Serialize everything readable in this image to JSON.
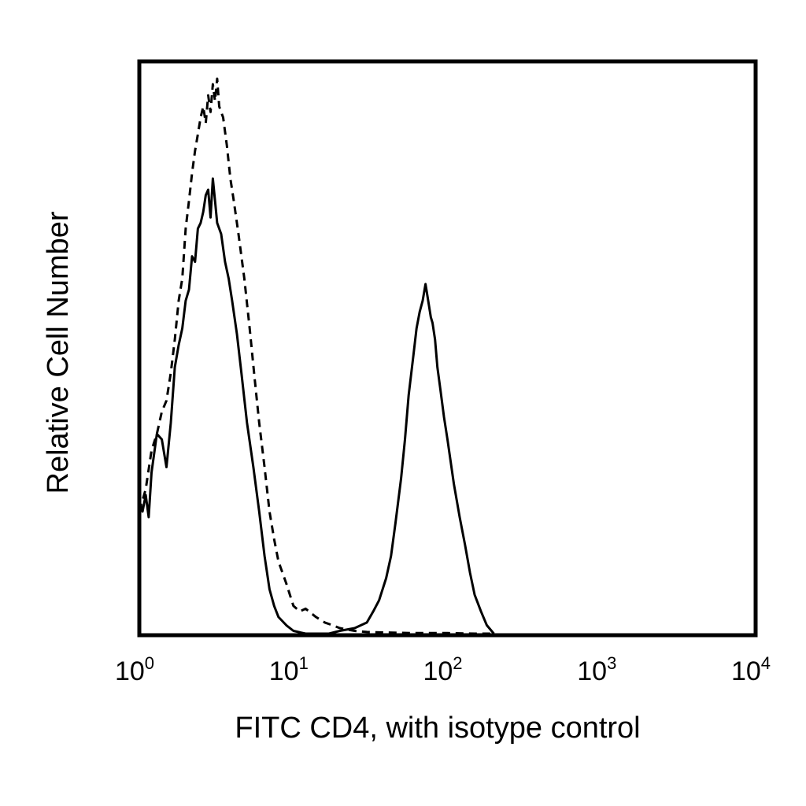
{
  "chart_data": {
    "type": "line",
    "title": "",
    "xlabel": "FITC CD4, with isotype control",
    "ylabel": "Relative Cell Number",
    "x_scale": "log",
    "xlim": [
      1,
      10000
    ],
    "ylim": [
      0,
      1
    ],
    "grid": false,
    "x_ticks": [
      {
        "base": "10",
        "exp": "0",
        "value": 1
      },
      {
        "base": "10",
        "exp": "1",
        "value": 10
      },
      {
        "base": "10",
        "exp": "2",
        "value": 100
      },
      {
        "base": "10",
        "exp": "3",
        "value": 1000
      },
      {
        "base": "10",
        "exp": "4",
        "value": 10000
      }
    ],
    "colors": {
      "line": "#000000",
      "frame": "#000000",
      "background": "#ffffff"
    },
    "series": [
      {
        "style": "solid",
        "x": [
          1.0,
          1.05,
          1.1,
          1.15,
          1.2,
          1.3,
          1.4,
          1.5,
          1.6,
          1.7,
          1.8,
          1.9,
          2.0,
          2.1,
          2.2,
          2.3,
          2.4,
          2.5,
          2.6,
          2.7,
          2.8,
          2.9,
          3.0,
          3.1,
          3.2,
          3.4,
          3.6,
          3.8,
          4.0,
          4.3,
          4.6,
          5.0,
          5.5,
          6.0,
          6.5,
          7.0,
          7.5,
          8.0,
          9.0,
          10.0,
          12.0,
          14.0,
          17.0,
          20.0,
          25.0,
          30.0,
          33.0,
          36.0,
          40.0,
          43.0,
          46.0,
          50.0,
          53.0,
          56.0,
          60.0,
          63.0,
          66.0,
          69.0,
          72.0,
          75.0,
          78.0,
          80.0,
          83.0,
          86.0,
          90.0,
          95.0,
          100.0,
          110.0,
          120.0,
          130.0,
          140.0,
          150.0,
          165.0,
          180.0,
          200.0
        ],
        "y": [
          0.24,
          0.22,
          0.25,
          0.21,
          0.29,
          0.36,
          0.35,
          0.3,
          0.38,
          0.48,
          0.52,
          0.55,
          0.6,
          0.62,
          0.68,
          0.67,
          0.73,
          0.74,
          0.76,
          0.79,
          0.8,
          0.75,
          0.82,
          0.78,
          0.74,
          0.72,
          0.67,
          0.64,
          0.6,
          0.54,
          0.47,
          0.38,
          0.3,
          0.22,
          0.14,
          0.08,
          0.05,
          0.03,
          0.015,
          0.005,
          0.0,
          0.0,
          0.0,
          0.005,
          0.01,
          0.02,
          0.04,
          0.06,
          0.1,
          0.14,
          0.2,
          0.28,
          0.35,
          0.43,
          0.5,
          0.55,
          0.58,
          0.6,
          0.63,
          0.6,
          0.57,
          0.56,
          0.53,
          0.48,
          0.44,
          0.39,
          0.35,
          0.27,
          0.21,
          0.16,
          0.11,
          0.07,
          0.04,
          0.015,
          0.0
        ]
      },
      {
        "style": "dashed",
        "x": [
          1.0,
          1.1,
          1.2,
          1.3,
          1.4,
          1.5,
          1.6,
          1.7,
          1.8,
          1.9,
          2.0,
          2.1,
          2.2,
          2.3,
          2.4,
          2.5,
          2.6,
          2.7,
          2.8,
          2.9,
          3.0,
          3.1,
          3.2,
          3.3,
          3.5,
          3.7,
          3.9,
          4.1,
          4.4,
          4.8,
          5.2,
          5.6,
          6.0,
          6.5,
          7.0,
          7.5,
          8.0,
          9.0,
          10.0,
          11.0,
          12.0,
          14.0,
          16.0,
          18.0,
          20.0,
          25.0,
          30.0,
          40.0,
          60.0,
          100.0,
          150.0,
          200.0
        ],
        "y": [
          0.22,
          0.26,
          0.33,
          0.36,
          0.4,
          0.42,
          0.47,
          0.53,
          0.6,
          0.64,
          0.73,
          0.78,
          0.83,
          0.87,
          0.9,
          0.93,
          0.95,
          0.92,
          0.97,
          0.94,
          0.99,
          0.96,
          1.0,
          0.95,
          0.93,
          0.88,
          0.82,
          0.78,
          0.72,
          0.64,
          0.55,
          0.46,
          0.38,
          0.3,
          0.22,
          0.17,
          0.13,
          0.09,
          0.05,
          0.04,
          0.045,
          0.03,
          0.02,
          0.015,
          0.01,
          0.005,
          0.003,
          0.002,
          0.001,
          0.001,
          0.0,
          0.0
        ]
      }
    ]
  }
}
